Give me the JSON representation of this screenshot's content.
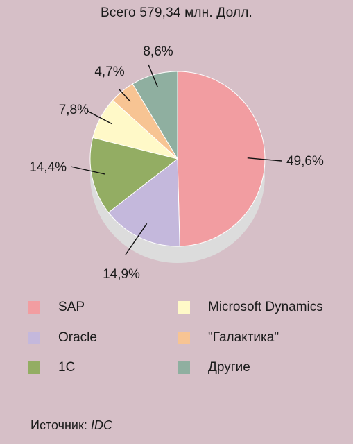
{
  "chart_data": {
    "type": "pie",
    "title": "Всего 579,34 млн. Долл.",
    "categories": [
      "SAP",
      "Oracle",
      "1C",
      "Microsoft Dynamics",
      "\"Галактика\"",
      "Другие"
    ],
    "values": [
      49.6,
      14.9,
      14.4,
      7.8,
      4.7,
      8.6
    ],
    "value_labels": [
      "49,6%",
      "14,9%",
      "14,4%",
      "7,8%",
      "4,7%",
      "8,6%"
    ],
    "colors": [
      "#f29da1",
      "#c4b8dc",
      "#93ad63",
      "#fff9c8",
      "#f7c493",
      "#8fafa0"
    ],
    "legend_position": "bottom"
  },
  "legend": [
    {
      "label": "SAP",
      "color": "#f29da1"
    },
    {
      "label": "Microsoft Dynamics",
      "color": "#fff9c8"
    },
    {
      "label": "Oracle",
      "color": "#c4b8dc"
    },
    {
      "label": "\"Галактика\"",
      "color": "#f7c493"
    },
    {
      "label": "1C",
      "color": "#93ad63"
    },
    {
      "label": "Другие",
      "color": "#8fafa0"
    }
  ],
  "source": {
    "prefix": "Источник: ",
    "name": "IDC"
  }
}
